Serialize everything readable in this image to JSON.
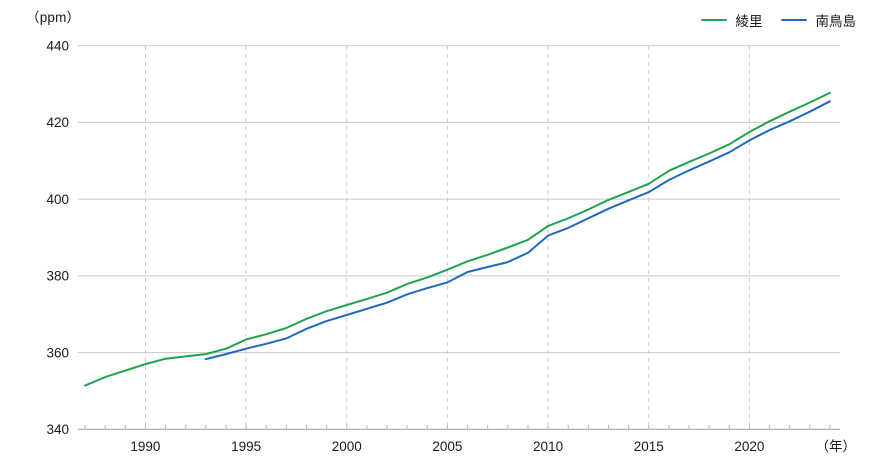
{
  "axes": {
    "y_unit": "（ppm）",
    "x_unit": "（年）"
  },
  "legend": {
    "position": "top-right",
    "items": [
      {
        "label": "綾里",
        "color": "#1fa350"
      },
      {
        "label": "南鳥島",
        "color": "#2069be"
      }
    ]
  },
  "style": {
    "grid_color": "#c9c9c9",
    "axis_color": "#9e9e9e",
    "tick_color": "#b8b8b8",
    "text_color": "#1a1a1a",
    "background": "#ffffff"
  },
  "chart_data": {
    "type": "line",
    "title": "",
    "xlabel": "（年）",
    "ylabel": "（ppm）",
    "ylim": [
      340,
      440
    ],
    "xlim": [
      1986.65,
      2024.5
    ],
    "yticks": [
      340,
      360,
      380,
      400,
      420,
      440
    ],
    "xticks": [
      1990,
      1995,
      2000,
      2005,
      2010,
      2015,
      2020
    ],
    "minor_x_ticks_every_year": true,
    "grid": {
      "horizontal": "solid",
      "vertical": "dashed-at-major-xticks"
    },
    "legend_position": "top-right",
    "series": [
      {
        "name": "綾里",
        "key": "ryori",
        "color": "#1fa350",
        "x": [
          1987,
          1988,
          1989,
          1990,
          1991,
          1992,
          1993,
          1994,
          1995,
          1996,
          1997,
          1998,
          1999,
          2000,
          2001,
          2002,
          2003,
          2004,
          2005,
          2006,
          2007,
          2008,
          2009,
          2010,
          2011,
          2012,
          2013,
          2014,
          2015,
          2016,
          2017,
          2018,
          2019,
          2020,
          2021,
          2022,
          2023,
          2024
        ],
        "values": [
          351.4,
          353.6,
          355.3,
          357.0,
          358.4,
          359.0,
          359.6,
          361.0,
          363.4,
          364.8,
          366.4,
          368.8,
          370.8,
          372.4,
          374.0,
          375.6,
          377.9,
          379.6,
          381.6,
          383.8,
          385.5,
          387.4,
          389.4,
          393.0,
          395.0,
          397.3,
          399.8,
          401.9,
          404.0,
          407.4,
          409.7,
          411.9,
          414.3,
          417.5,
          420.3,
          422.8,
          425.2,
          427.7
        ]
      },
      {
        "name": "南鳥島",
        "key": "minamitorishima",
        "color": "#2069be",
        "x": [
          1993,
          1994,
          1995,
          1996,
          1997,
          1998,
          1999,
          2000,
          2001,
          2002,
          2003,
          2004,
          2005,
          2006,
          2007,
          2008,
          2009,
          2010,
          2011,
          2012,
          2013,
          2014,
          2015,
          2016,
          2017,
          2018,
          2019,
          2020,
          2021,
          2022,
          2023,
          2024
        ],
        "values": [
          358.3,
          359.6,
          361.0,
          362.3,
          363.7,
          366.2,
          368.2,
          369.8,
          371.4,
          373.0,
          375.2,
          376.8,
          378.3,
          381.0,
          382.3,
          383.6,
          386.0,
          390.5,
          392.5,
          395.0,
          397.5,
          399.7,
          401.8,
          405.0,
          407.5,
          409.8,
          412.2,
          415.3,
          418.0,
          420.3,
          422.8,
          425.5
        ]
      }
    ]
  }
}
